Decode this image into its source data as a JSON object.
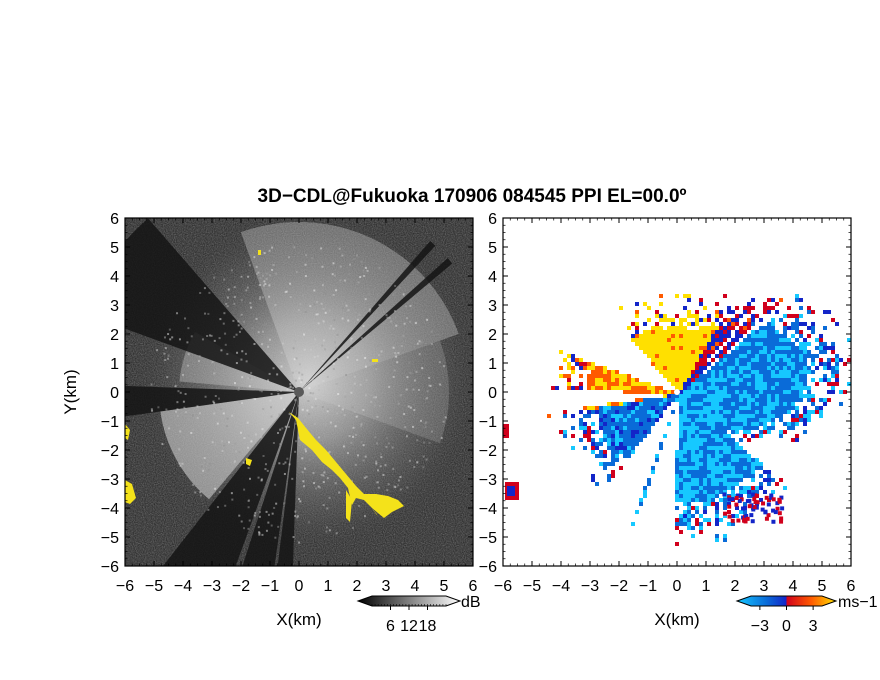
{
  "figure": {
    "title": "3D−CDL@Fukuoka 170906 084545 PPI EL=00.0º"
  },
  "chart_data": [
    {
      "type": "heatmap",
      "panel": "left",
      "quantity": "SNR (dB)",
      "xlabel": "X(km)",
      "ylabel": "Y(km)",
      "xlim": [
        -6,
        6
      ],
      "ylim": [
        -6,
        6
      ],
      "xticks": [
        "−6",
        "−5",
        "−4",
        "−3",
        "−2",
        "−1",
        "0",
        "1",
        "2",
        "3",
        "4",
        "5",
        "6"
      ],
      "yticks": [
        "−6",
        "−5",
        "−4",
        "−3",
        "−2",
        "−1",
        "0",
        "1",
        "2",
        "3",
        "4",
        "5",
        "6"
      ],
      "colorbar": {
        "unit": "dB",
        "ticks": [
          "6",
          "12",
          "18"
        ],
        "range": [
          0,
          24
        ],
        "colors": [
          "#000000",
          "#ffffff"
        ],
        "flagged_color": "#f4e21a"
      },
      "grid": false,
      "background": "noise texture, darker at edges, bright fan toward the southwest and northeast"
    },
    {
      "type": "heatmap",
      "panel": "right",
      "quantity": "radial velocity",
      "xlabel": "X(km)",
      "ylabel": "",
      "xlim": [
        -6,
        6
      ],
      "ylim": [
        -6,
        6
      ],
      "xticks": [
        "−6",
        "−5",
        "−4",
        "−3",
        "−2",
        "−1",
        "0",
        "1",
        "2",
        "3",
        "4",
        "5",
        "6"
      ],
      "yticks": [
        "−6",
        "−5",
        "−4",
        "−3",
        "−2",
        "−1",
        "0",
        "1",
        "2",
        "3",
        "4",
        "5",
        "6"
      ],
      "colorbar": {
        "unit": "ms−1",
        "ticks": [
          "−3",
          "0",
          "3"
        ],
        "range": [
          -4,
          4
        ],
        "colors": [
          "#16c8ff",
          "#0a6bd8",
          "#1325c8",
          "#d1001c",
          "#ff5a00",
          "#ffe000"
        ]
      },
      "grid": false
    }
  ]
}
